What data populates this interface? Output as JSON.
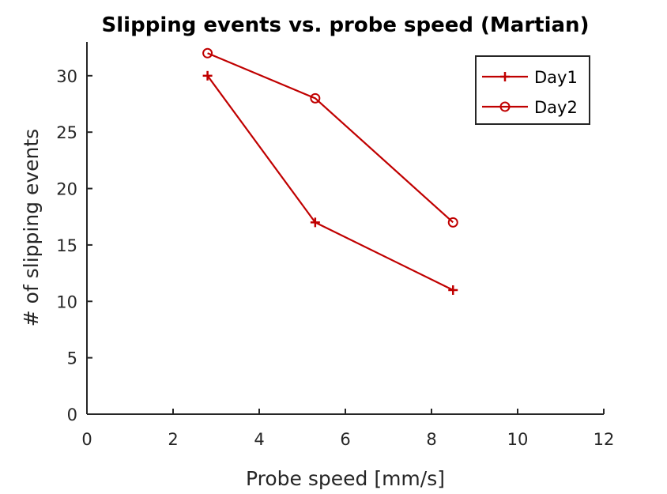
{
  "chart_data": {
    "type": "line",
    "title": "Slipping events vs. probe speed (Martian)",
    "xlabel": "Probe speed [mm/s]",
    "ylabel": "# of slipping events",
    "xlim": [
      0,
      12
    ],
    "ylim": [
      0,
      33
    ],
    "xticks": [
      0,
      2,
      4,
      6,
      8,
      10,
      12
    ],
    "yticks": [
      0,
      5,
      10,
      15,
      20,
      25,
      30
    ],
    "grid": false,
    "legend_position": "top-right",
    "series": [
      {
        "name": "Day1",
        "marker": "plus",
        "color": "#c00000",
        "x": [
          2.8,
          5.3,
          8.5
        ],
        "y": [
          30,
          17,
          11
        ]
      },
      {
        "name": "Day2",
        "marker": "circle",
        "color": "#c00000",
        "x": [
          2.8,
          5.3,
          8.5
        ],
        "y": [
          32,
          28,
          17
        ]
      }
    ]
  }
}
